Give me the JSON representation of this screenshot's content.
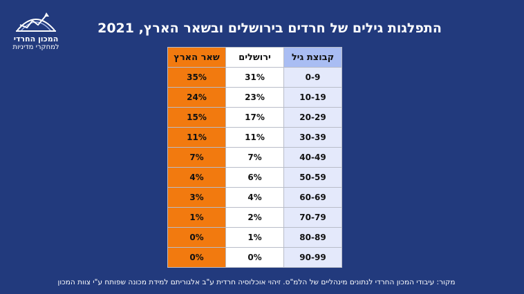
{
  "title": "התפלגות גילים של חרדים בירושלים ובשאר הארץ, 2021",
  "logo": {
    "line1": "המכון החרדי",
    "line2": "למחקרי מדיניות"
  },
  "table": {
    "headers": [
      "קבוצת גיל",
      "ירושלים",
      "שאר הארץ"
    ],
    "rows": [
      [
        "0-9",
        "31%",
        "35%"
      ],
      [
        "10-19",
        "23%",
        "24%"
      ],
      [
        "20-29",
        "17%",
        "15%"
      ],
      [
        "30-39",
        "11%",
        "11%"
      ],
      [
        "40-49",
        "7%",
        "7%"
      ],
      [
        "50-59",
        "6%",
        "4%"
      ],
      [
        "60-69",
        "4%",
        "3%"
      ],
      [
        "70-79",
        "2%",
        "1%"
      ],
      [
        "80-89",
        "1%",
        "0%"
      ],
      [
        "90-99",
        "0%",
        "0%"
      ]
    ]
  },
  "source": "מקור: עיבודי המכון החרדי לנתונים מינהליים של הלמ\"ס. זיהוי אוכלוסיה חרדית ע\"ב אלגוריתם למידת מכונה שפותח ע\"י צוות המכון",
  "colors": {
    "background": "#223a7d",
    "age_header": "#a9bdf3",
    "age_cell": "#e4e9fb",
    "rest_column": "#f27a0f"
  }
}
